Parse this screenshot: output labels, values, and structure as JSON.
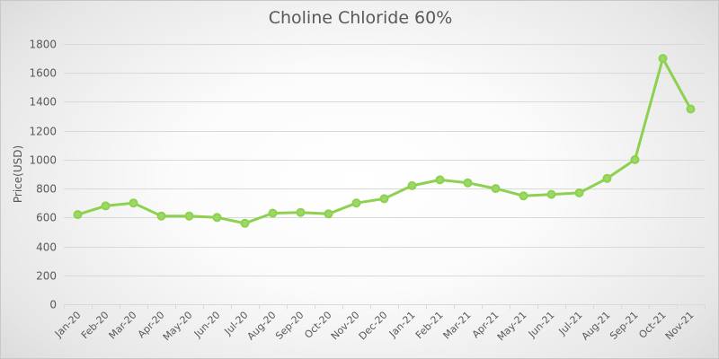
{
  "chart_data": {
    "type": "line",
    "title": "Choline Chloride 60%",
    "xlabel": "",
    "ylabel": "Price(USD)",
    "ylim": [
      0,
      1800
    ],
    "yticks": [
      0,
      200,
      400,
      600,
      800,
      1000,
      1200,
      1400,
      1600,
      1800
    ],
    "grid": true,
    "legend": "none",
    "categories": [
      "Jan-20",
      "Feb-20",
      "Mar-20",
      "Apr-20",
      "May-20",
      "Jun-20",
      "Jul-20",
      "Aug-20",
      "Sep-20",
      "Oct-20",
      "Nov-20",
      "Dec-20",
      "Jan-21",
      "Feb-21",
      "Mar-21",
      "Apr-21",
      "May-21",
      "Jun-21",
      "Jul-21",
      "Aug-21",
      "Sep-21",
      "Oct-21",
      "Nov-21"
    ],
    "series": [
      {
        "name": "Choline Chloride 60%",
        "color": "#8DD14F",
        "values": [
          620,
          680,
          700,
          610,
          610,
          600,
          560,
          630,
          635,
          625,
          700,
          730,
          820,
          860,
          840,
          800,
          750,
          760,
          770,
          870,
          1000,
          1700,
          1350
        ]
      }
    ]
  },
  "colors": {
    "line": "#8DD14F",
    "marker_fill": "#9BD865",
    "text": "#595959",
    "grid": "#d9d9d9"
  }
}
